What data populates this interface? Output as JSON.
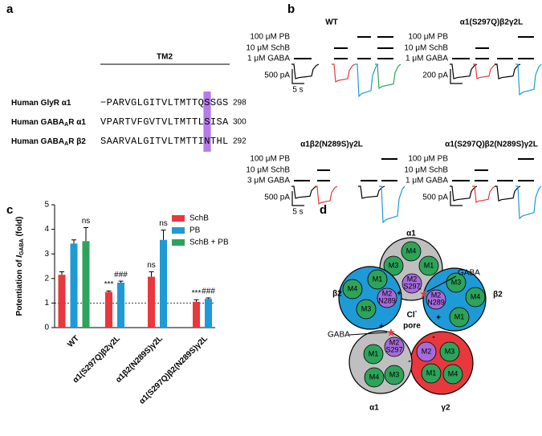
{
  "panel_labels": [
    "a",
    "b",
    "c",
    "d"
  ],
  "alignment": {
    "header": "TM2",
    "rows": [
      {
        "name": {
          "pre": "Human GlyR α1"
        },
        "seq": {
          "pre": "−PARVGLGITVLTMTTQ",
          "hl": "S",
          "post": "SGS"
        },
        "number": "298"
      },
      {
        "name": {
          "pre": "Human GABA",
          "sub": "A",
          "post": "R α1"
        },
        "seq": {
          "pre": "VPARTVFGVTVLTMTTL",
          "hl": "S",
          "post": "ISA"
        },
        "number": "300"
      },
      {
        "name": {
          "pre": "Human GABA",
          "sub": "A",
          "post": "R β2"
        },
        "seq": {
          "pre": "SAARVALGITVLTMTTI",
          "hl": "N",
          "post": "THL"
        },
        "number": "292"
      }
    ]
  },
  "recordings": [
    {
      "title": "WT",
      "conditions": [
        "100 μM PB",
        "10 μM SchB",
        "1 μM GABA"
      ],
      "scale_current": "500 pA",
      "scale_time": "5 s"
    },
    {
      "title": "α1(S297Q)β2γ2L",
      "conditions": [
        "100 μM PB",
        "10 μM SchB",
        "1 μM GABA"
      ],
      "scale_current": "200 pA"
    },
    {
      "title": "α1β2(N289S)γ2L",
      "conditions": [
        "100 μM PB",
        "10 μM SchB",
        "3 μM GABA"
      ],
      "scale_current": "500 pA",
      "scale_time": "5 s"
    },
    {
      "title": "α1(S297Q)β2(N289S)γ2L",
      "conditions": [
        "100 μM PB",
        "10 μM SchB",
        "1 μM GABA"
      ],
      "scale_current": "500 pA"
    }
  ],
  "chart_data": {
    "type": "bar",
    "y_label": {
      "pre": "Potentiation of ",
      "italic": "I",
      "sub": "GABA",
      "post": " (fold)"
    },
    "categories": [
      "WT",
      "α1(S297Q)β2γ2L",
      "α1β2(N289S)γ2L",
      "α1(S297Q)β2(N289S)γ2L"
    ],
    "series": [
      {
        "name": "SchB",
        "color": "#e8383d",
        "values": [
          2.15,
          1.45,
          2.07,
          1.05
        ],
        "errors": [
          0.12,
          0.04,
          0.2,
          0.08
        ],
        "significance": [
          null,
          "***",
          "ns",
          "***"
        ]
      },
      {
        "name": "PB",
        "color": "#1e9ad6",
        "values": [
          3.42,
          1.83,
          3.57,
          1.17
        ],
        "errors": [
          0.15,
          0.06,
          0.4,
          0.04
        ],
        "significance": [
          null,
          "###",
          "ns",
          "###"
        ]
      },
      {
        "name": "SchB + PB",
        "color": "#2ea35a",
        "values": [
          3.52,
          null,
          null,
          null
        ],
        "errors": [
          0.55,
          null,
          null,
          null
        ],
        "significance": [
          "ns",
          null,
          null,
          null
        ]
      }
    ],
    "ylim": [
      0,
      5
    ],
    "yticks": [
      0,
      1,
      2,
      3,
      4,
      5
    ],
    "reference_line": 1
  },
  "model": {
    "subunits": [
      {
        "name": "α1",
        "helices": [
          {
            "label": "M4"
          },
          {
            "label": "M3"
          },
          {
            "label": "M1"
          },
          {
            "label": "M2",
            "residue": "S297"
          }
        ]
      },
      {
        "name": "β2",
        "helices": [
          {
            "label": "M3"
          },
          {
            "label": "M4"
          },
          {
            "label": "M1"
          },
          {
            "label": "M2",
            "residue": "N289"
          }
        ]
      },
      {
        "name": "γ2",
        "helices": [
          {
            "label": "M2"
          },
          {
            "label": "M3"
          },
          {
            "label": "M1"
          },
          {
            "label": "M4"
          }
        ]
      },
      {
        "name": "α1",
        "helices": [
          {
            "label": "M1"
          },
          {
            "label": "M4"
          },
          {
            "label": "M3"
          },
          {
            "label": "M2",
            "residue": "S297"
          }
        ]
      },
      {
        "name": "β2",
        "helices": [
          {
            "label": "M1"
          },
          {
            "label": "M4"
          },
          {
            "label": "M3"
          },
          {
            "label": "M2",
            "residue": "N289"
          }
        ]
      }
    ],
    "ligand": "GABA",
    "ion": {
      "text": "Cl",
      "sup": "-"
    },
    "pore": "pore",
    "signs": [
      "+",
      "-",
      "+",
      "-",
      "+",
      "-"
    ]
  }
}
